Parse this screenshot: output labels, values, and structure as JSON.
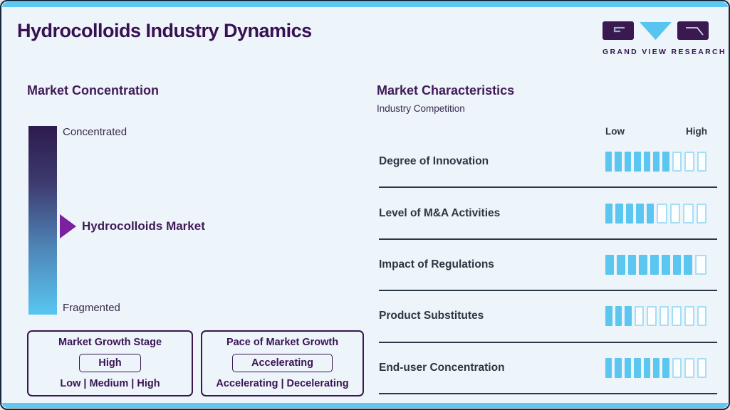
{
  "page": {
    "title": "Hydrocolloids Industry Dynamics"
  },
  "logo": {
    "text": "GRAND VIEW RESEARCH"
  },
  "concentration": {
    "heading": "Market Concentration",
    "top_label": "Concentrated",
    "bottom_label": "Fragmented",
    "marker_label": "Hydrocolloids Market",
    "gradient_top_color": "#2d1b4d",
    "gradient_bottom_color": "#58c6f1",
    "arrow_color": "#7d209f"
  },
  "growth_stage_box": {
    "title": "Market Growth Stage",
    "value": "High",
    "options": "Low | Medium | High"
  },
  "pace_box": {
    "title": "Pace of Market Growth",
    "value": "Accelerating",
    "options": "Accelerating | Decelerating"
  },
  "characteristics": {
    "heading": "Market Characteristics",
    "subheading": "Industry Competition",
    "scale_low": "Low",
    "scale_high": "High",
    "filled_color": "#5bc6f0",
    "empty_border_color": "#a5def6",
    "rows": [
      {
        "label": "Degree of Innovation",
        "filled": 7,
        "total": 10
      },
      {
        "label": "Level of M&A Activities",
        "filled": 5,
        "total": 9
      },
      {
        "label": "Impact of Regulations",
        "filled": 8,
        "total": 9
      },
      {
        "label": "Product Substitutes",
        "filled": 3,
        "total": 9
      },
      {
        "label": "End-user Concentration",
        "filled": 7,
        "total": 10
      }
    ]
  },
  "chart_data": [
    {
      "type": "bar",
      "title": "Market Characteristics - Industry Competition",
      "categories": [
        "Degree of Innovation",
        "Level of M&A Activities",
        "Impact of Regulations",
        "Product Substitutes",
        "End-user Concentration"
      ],
      "series": [
        {
          "name": "filled_segments",
          "values": [
            7,
            5,
            8,
            3,
            7
          ]
        },
        {
          "name": "total_segments",
          "values": [
            10,
            9,
            9,
            9,
            10
          ]
        }
      ],
      "xlabel": "",
      "ylabel": "",
      "scale_labels": [
        "Low",
        "High"
      ],
      "legend_position": "none",
      "grid": false
    },
    {
      "type": "scatter",
      "title": "Market Concentration",
      "axis_top_label": "Concentrated",
      "axis_bottom_label": "Fragmented",
      "points": [
        {
          "label": "Hydrocolloids Market",
          "position_on_scale": "middle, slightly fragmented side"
        }
      ]
    }
  ]
}
